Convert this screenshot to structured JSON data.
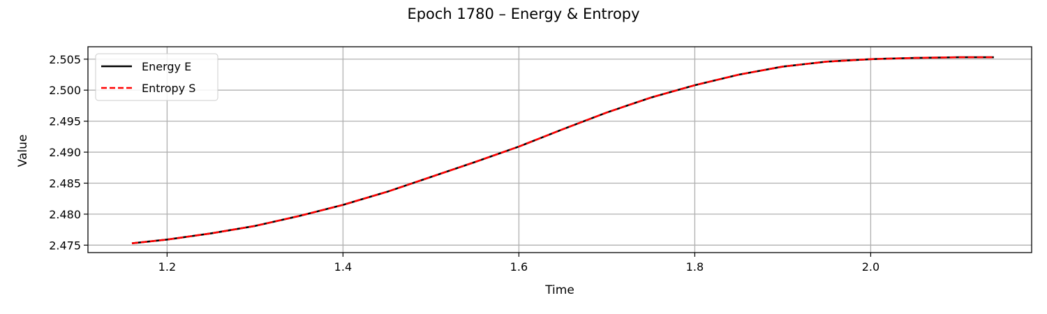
{
  "chart_data": {
    "type": "line",
    "title": "Epoch 1780 – Energy & Entropy",
    "xlabel": "Time",
    "ylabel": "Value",
    "xlim": [
      1.11,
      2.183
    ],
    "ylim": [
      2.4738,
      2.507
    ],
    "xticks": [
      1.2,
      1.4,
      1.6,
      1.8,
      2.0
    ],
    "xtick_labels": [
      "1.2",
      "1.4",
      "1.6",
      "1.8",
      "2.0"
    ],
    "yticks": [
      2.475,
      2.48,
      2.485,
      2.49,
      2.495,
      2.5,
      2.505
    ],
    "ytick_labels": [
      "2.475",
      "2.480",
      "2.485",
      "2.490",
      "2.495",
      "2.500",
      "2.505"
    ],
    "grid": true,
    "legend_position": "top-left",
    "series": [
      {
        "name": "Energy E",
        "color": "#000000",
        "style": "solid",
        "x": [
          1.16,
          1.2,
          1.25,
          1.3,
          1.35,
          1.4,
          1.45,
          1.5,
          1.55,
          1.6,
          1.65,
          1.7,
          1.75,
          1.8,
          1.85,
          1.9,
          1.95,
          2.0,
          2.05,
          2.1,
          2.14
        ],
        "y": [
          2.4753,
          2.4759,
          2.4769,
          2.4781,
          2.4797,
          2.4815,
          2.4836,
          2.486,
          2.4884,
          2.4909,
          2.4937,
          2.4964,
          2.4988,
          2.5008,
          2.5025,
          2.5038,
          2.5046,
          2.505,
          2.5052,
          2.5053,
          2.5053
        ]
      },
      {
        "name": "Entropy S",
        "color": "#ff0000",
        "style": "dashed",
        "x": [
          1.16,
          1.2,
          1.25,
          1.3,
          1.35,
          1.4,
          1.45,
          1.5,
          1.55,
          1.6,
          1.65,
          1.7,
          1.75,
          1.8,
          1.85,
          1.9,
          1.95,
          2.0,
          2.05,
          2.1,
          2.14
        ],
        "y": [
          2.4753,
          2.4759,
          2.4769,
          2.4781,
          2.4797,
          2.4815,
          2.4836,
          2.486,
          2.4884,
          2.4909,
          2.4937,
          2.4964,
          2.4988,
          2.5008,
          2.5025,
          2.5038,
          2.5046,
          2.505,
          2.5052,
          2.5053,
          2.5053
        ]
      }
    ]
  }
}
